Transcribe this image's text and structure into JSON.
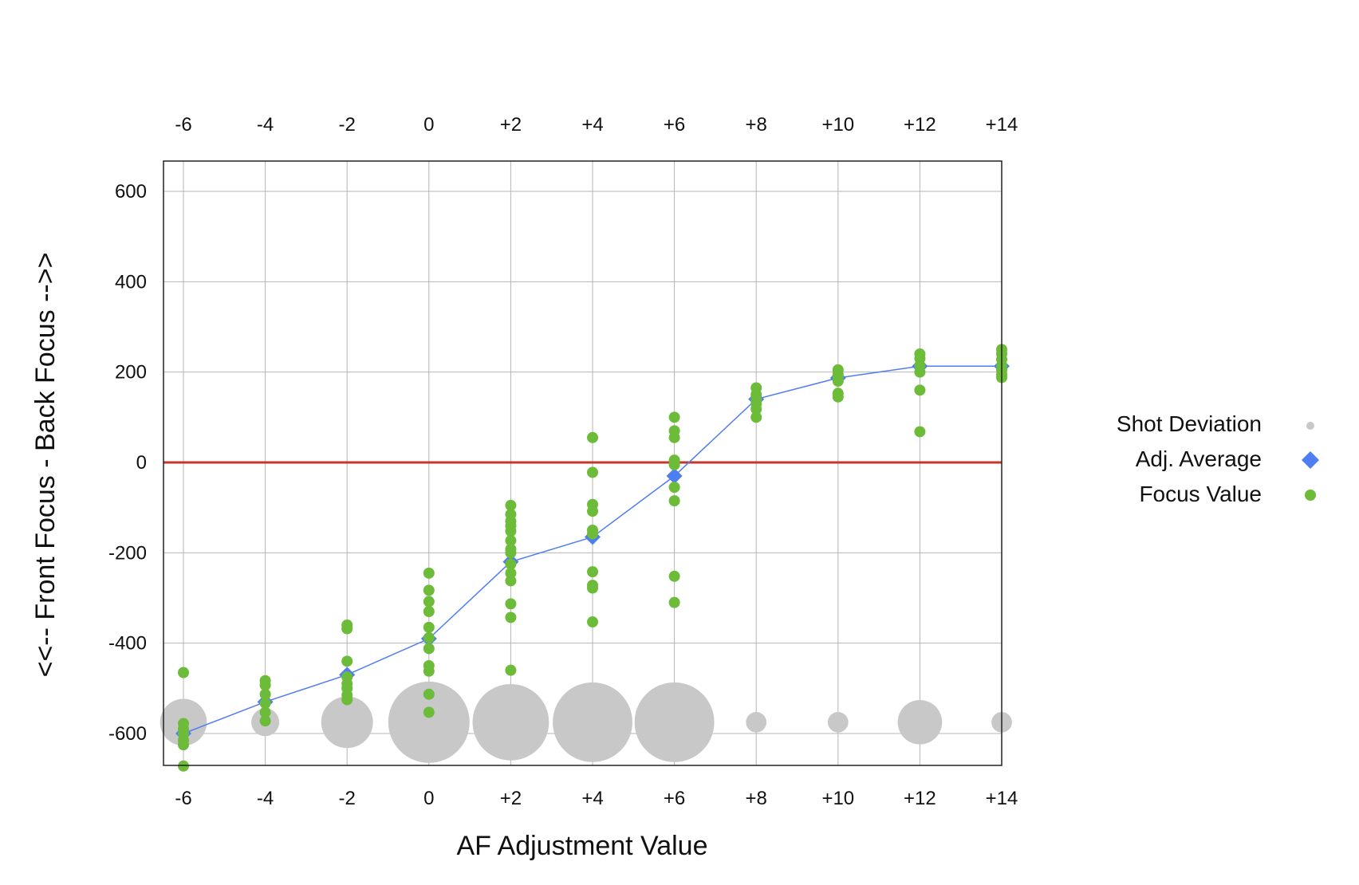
{
  "chart_data": {
    "type": "scatter",
    "title": "",
    "xlabel": "AF Adjustment Value",
    "ylabel": "<<-- Front Focus - Back Focus -->>",
    "x_tick_labels": [
      "-6",
      "-4",
      "-2",
      "0",
      "+2",
      "+4",
      "+6",
      "+8",
      "+10",
      "+12",
      "+14"
    ],
    "y_tick_labels": [
      "600",
      "400",
      "200",
      "0",
      "-200",
      "-400",
      "-600"
    ],
    "xlim": [
      -7,
      14
    ],
    "ylim": [
      -670,
      670
    ],
    "grid": true,
    "legend_position": "right",
    "reference_line": {
      "y": 0,
      "color": "#c0392b"
    },
    "series": [
      {
        "name": "Shot Deviation",
        "kind": "bubble",
        "color": "#c8c8c8",
        "y_baseline": -575,
        "x": [
          -6,
          -4,
          -2,
          0,
          2,
          4,
          6,
          8,
          10,
          12,
          14
        ],
        "sizes": [
          57,
          34,
          63,
          99,
          93,
          97,
          97,
          25,
          25,
          54,
          25
        ]
      },
      {
        "name": "Adj. Average",
        "kind": "line-diamond",
        "color": "#4f7ef3",
        "x": [
          -6,
          -4,
          -2,
          0,
          2,
          4,
          6,
          8,
          10,
          12,
          14
        ],
        "y": [
          -600,
          -530,
          -470,
          -390,
          -220,
          -165,
          -30,
          140,
          187,
          213,
          213
        ]
      },
      {
        "name": "Focus Value",
        "kind": "dot",
        "color": "#6cbc3a",
        "points": [
          [
            -6,
            -465
          ],
          [
            -6,
            -578
          ],
          [
            -6,
            -590
          ],
          [
            -6,
            -600
          ],
          [
            -6,
            -615
          ],
          [
            -6,
            -625
          ],
          [
            -6,
            -672
          ],
          [
            -4,
            -483
          ],
          [
            -4,
            -493
          ],
          [
            -4,
            -513
          ],
          [
            -4,
            -533
          ],
          [
            -4,
            -553
          ],
          [
            -4,
            -572
          ],
          [
            -2,
            -360
          ],
          [
            -2,
            -368
          ],
          [
            -2,
            -440
          ],
          [
            -2,
            -475
          ],
          [
            -2,
            -490
          ],
          [
            -2,
            -500
          ],
          [
            -2,
            -515
          ],
          [
            -2,
            -525
          ],
          [
            0,
            -245
          ],
          [
            0,
            -283
          ],
          [
            0,
            -308
          ],
          [
            0,
            -330
          ],
          [
            0,
            -365
          ],
          [
            0,
            -388
          ],
          [
            0,
            -412
          ],
          [
            0,
            -450
          ],
          [
            0,
            -462
          ],
          [
            0,
            -513
          ],
          [
            0,
            -553
          ],
          [
            2,
            -95
          ],
          [
            2,
            -115
          ],
          [
            2,
            -130
          ],
          [
            2,
            -140
          ],
          [
            2,
            -152
          ],
          [
            2,
            -173
          ],
          [
            2,
            -192
          ],
          [
            2,
            -200
          ],
          [
            2,
            -225
          ],
          [
            2,
            -245
          ],
          [
            2,
            -262
          ],
          [
            2,
            -313
          ],
          [
            2,
            -343
          ],
          [
            2,
            -460
          ],
          [
            4,
            55
          ],
          [
            4,
            -22
          ],
          [
            4,
            -93
          ],
          [
            4,
            -108
          ],
          [
            4,
            -150
          ],
          [
            4,
            -158
          ],
          [
            4,
            -242
          ],
          [
            4,
            -272
          ],
          [
            4,
            -278
          ],
          [
            4,
            -353
          ],
          [
            6,
            100
          ],
          [
            6,
            70
          ],
          [
            6,
            55
          ],
          [
            6,
            5
          ],
          [
            6,
            -2
          ],
          [
            6,
            -5
          ],
          [
            6,
            -55
          ],
          [
            6,
            -85
          ],
          [
            6,
            -252
          ],
          [
            6,
            -310
          ],
          [
            8,
            165
          ],
          [
            8,
            150
          ],
          [
            8,
            140
          ],
          [
            8,
            130
          ],
          [
            8,
            118
          ],
          [
            8,
            100
          ],
          [
            10,
            205
          ],
          [
            10,
            195
          ],
          [
            10,
            190
          ],
          [
            10,
            180
          ],
          [
            10,
            153
          ],
          [
            10,
            145
          ],
          [
            12,
            240
          ],
          [
            12,
            230
          ],
          [
            12,
            215
          ],
          [
            12,
            200
          ],
          [
            12,
            160
          ],
          [
            12,
            68
          ],
          [
            14,
            250
          ],
          [
            14,
            240
          ],
          [
            14,
            228
          ],
          [
            14,
            215
          ],
          [
            14,
            205
          ],
          [
            14,
            195
          ],
          [
            14,
            188
          ]
        ]
      }
    ]
  }
}
